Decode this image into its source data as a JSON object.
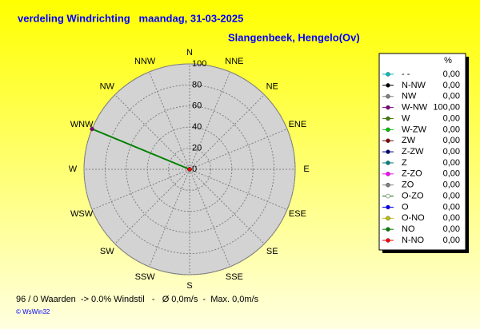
{
  "chart_data": {
    "type": "polar",
    "title": "verdeling Windrichting   maandag, 31-03-2025",
    "subtitle": "Slangenbeek, Hengelo(Ov)",
    "directions": [
      "N",
      "NNE",
      "NE",
      "ENE",
      "E",
      "ESE",
      "SE",
      "SSE",
      "S",
      "SSW",
      "SW",
      "WSW",
      "W",
      "WNW",
      "NW",
      "NNW"
    ],
    "rlim": [
      0,
      100
    ],
    "rticks": [
      0,
      20,
      40,
      60,
      80,
      100
    ],
    "grid": true,
    "line_color": "#008000",
    "legend_header": "%",
    "categories": [
      "- -",
      "N-NW",
      "NW",
      "W-NW",
      "W",
      "W-ZW",
      "ZW",
      "Z-ZW",
      "Z",
      "Z-ZO",
      "ZO",
      "O-ZO",
      "O",
      "O-NO",
      "NO",
      "N-NO"
    ],
    "colors": [
      "#00c0c0",
      "#000000",
      "#808080",
      "#800080",
      "#408000",
      "#00c000",
      "#800000",
      "#000080",
      "#008080",
      "#ff00ff",
      "#808080",
      "#ffffff",
      "#0000ff",
      "#c0c000",
      "#008000",
      "#ff0000"
    ],
    "values": [
      0,
      0,
      0,
      100,
      0,
      0,
      0,
      0,
      0,
      0,
      0,
      0,
      0,
      0,
      0,
      0
    ],
    "value_labels": [
      "0,00",
      "0,00",
      "0,00",
      "100,00",
      "0,00",
      "0,00",
      "0,00",
      "0,00",
      "0,00",
      "0,00",
      "0,00",
      "0,00",
      "0,00",
      "0,00",
      "0,00",
      "0,00"
    ],
    "footer": "96 / 0 Waarden  -> 0.0% Windstil   -   Ø 0,0m/s  -  Max. 0,0m/s",
    "credit": "© WsWin32"
  }
}
